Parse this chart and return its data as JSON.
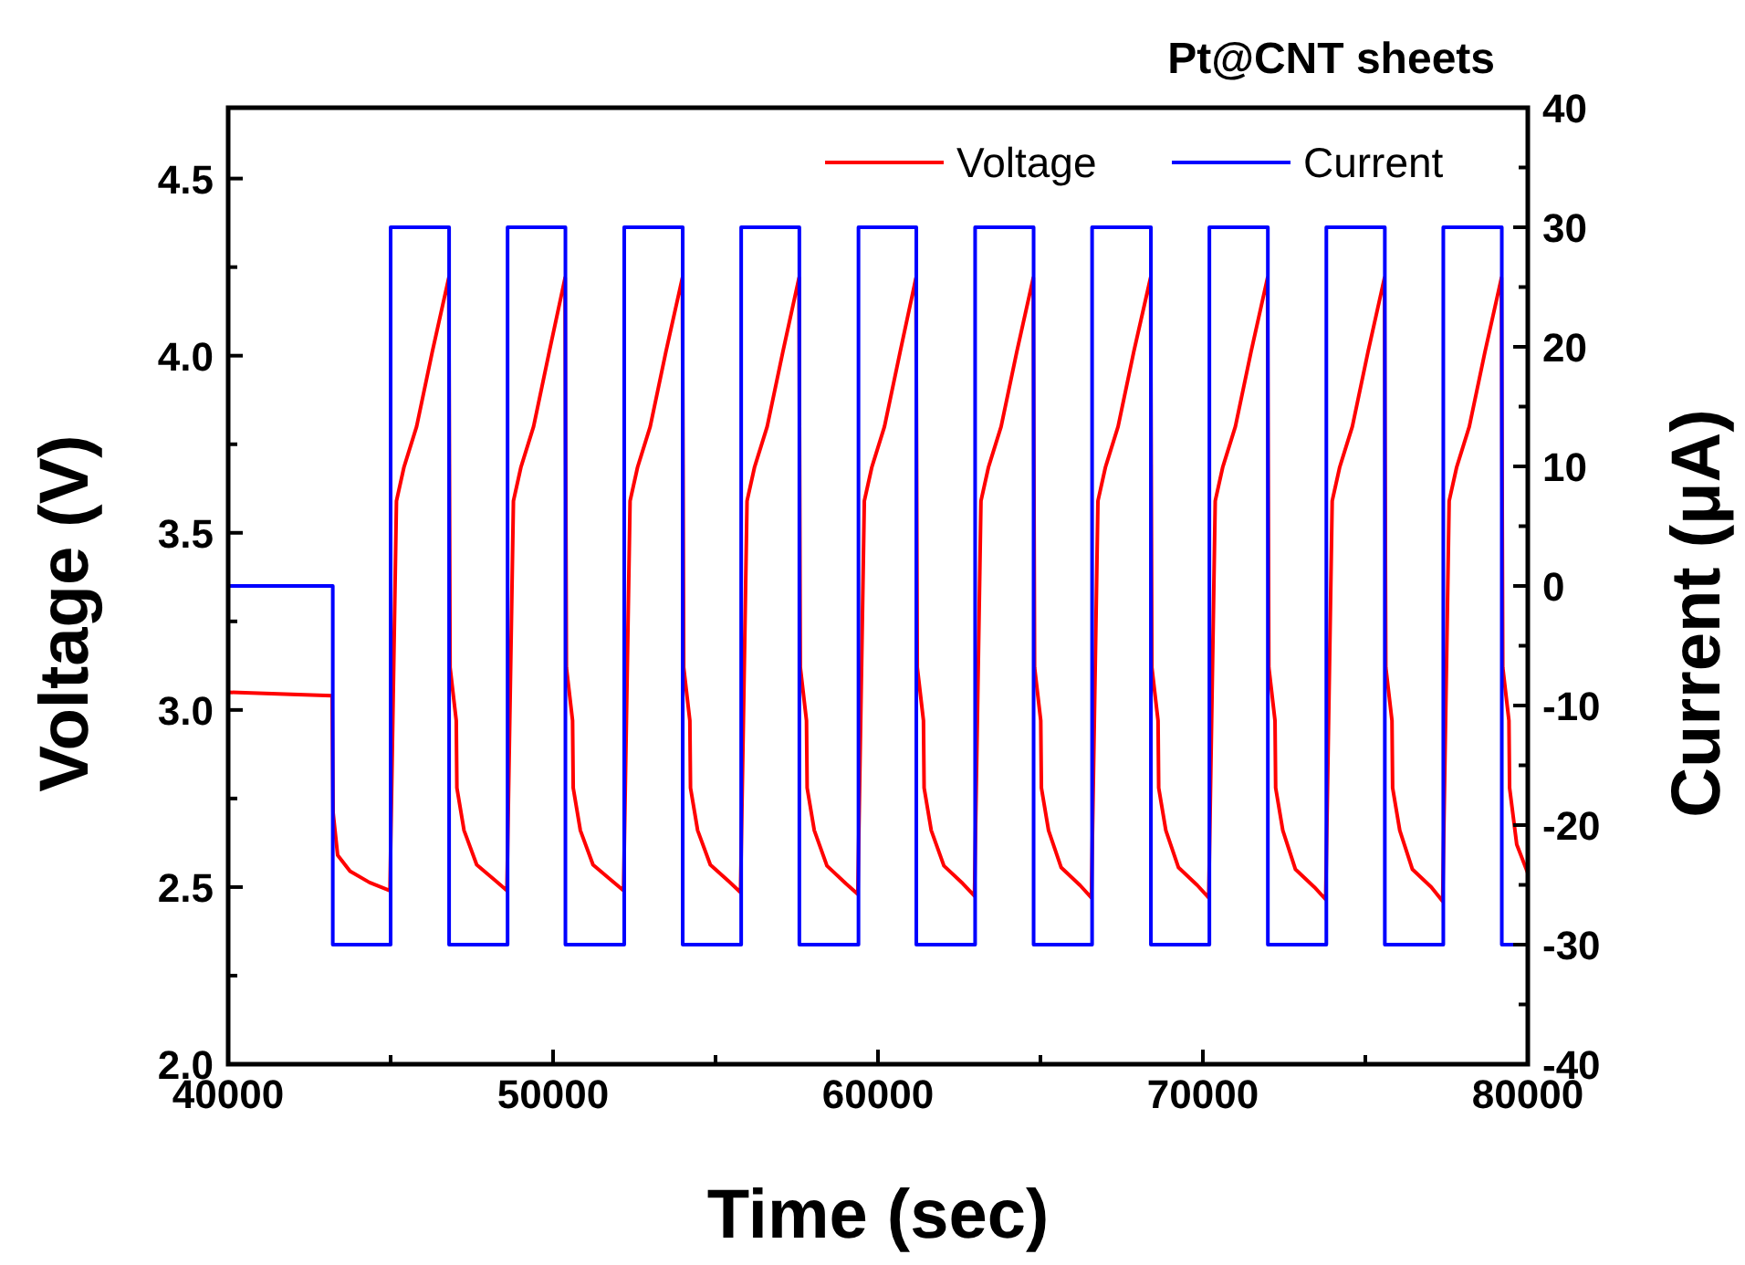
{
  "chart_data": {
    "type": "line",
    "title": "Pt@CNT sheets",
    "xlabel": "Time (sec)",
    "ylabel": "Voltage (V)",
    "y2label": "Current (μA)",
    "xlim": [
      40000,
      80000
    ],
    "xticks": [
      40000,
      {
        "value": 45000,
        "label": null
      },
      50000,
      {
        "value": 55000,
        "label": null
      },
      60000,
      {
        "value": 65000,
        "label": null
      },
      70000,
      {
        "value": 75000,
        "label": null
      },
      80000
    ],
    "ylim": [
      2.0,
      4.7
    ],
    "yticks": [
      {
        "value": 2,
        "label": "2.0"
      },
      {
        "value": 2.25,
        "label": null
      },
      {
        "value": 2.5,
        "label": "2.5"
      },
      {
        "value": 2.75,
        "label": null
      },
      {
        "value": 3,
        "label": "3.0"
      },
      {
        "value": 3.25,
        "label": null
      },
      {
        "value": 3.5,
        "label": "3.5"
      },
      {
        "value": 3.75,
        "label": null
      },
      {
        "value": 4,
        "label": "4.0"
      },
      {
        "value": 4.25,
        "label": null
      },
      {
        "value": 4.5,
        "label": "4.5"
      }
    ],
    "y2lim": [
      -40,
      40
    ],
    "y2ticks": [
      -40,
      {
        "value": -35,
        "label": null
      },
      -30,
      {
        "value": -25,
        "label": null
      },
      -20,
      {
        "value": -15,
        "label": null
      },
      -10,
      {
        "value": -5,
        "label": null
      },
      0,
      {
        "value": 5,
        "label": null
      },
      10,
      {
        "value": 15,
        "label": null
      },
      20,
      {
        "value": 25,
        "label": null
      },
      30,
      {
        "value": 35,
        "label": null
      },
      40
    ],
    "legend": "top right",
    "grid": false,
    "marker": "none",
    "line_style": "solid",
    "series": [
      {
        "name": "Voltage",
        "color": "#ff0000",
        "x": [
          40000,
          43200,
          43230,
          43370,
          43750,
          44350,
          44980,
          45180,
          45410,
          45800,
          46280,
          46790,
          46830,
          47020,
          47040,
          47260,
          47650,
          48230,
          48580,
          48780,
          49010,
          49400,
          49880,
          50370,
          50410,
          50600,
          50620,
          50840,
          51230,
          51810,
          52170,
          52370,
          52600,
          52990,
          53470,
          53980,
          54020,
          54210,
          54230,
          54450,
          54840,
          55420,
          55770,
          55970,
          56200,
          56590,
          57070,
          57570,
          57610,
          57800,
          57820,
          58040,
          58430,
          59010,
          59380,
          59580,
          59810,
          60200,
          60680,
          61170,
          61210,
          61400,
          61420,
          61640,
          62030,
          62610,
          62970,
          63170,
          63400,
          63790,
          64270,
          64780,
          64820,
          65010,
          65030,
          65250,
          65640,
          66220,
          66570,
          66770,
          67000,
          67390,
          67870,
          68390,
          68430,
          68620,
          68640,
          68860,
          69250,
          69830,
          70180,
          70380,
          70610,
          71000,
          71480,
          71990,
          72030,
          72220,
          72240,
          72460,
          72850,
          73430,
          73780,
          73980,
          74210,
          74600,
          75080,
          75590,
          75630,
          75820,
          75840,
          76060,
          76450,
          77030,
          77380,
          77580,
          77810,
          78200,
          78680,
          79190,
          79230,
          79420,
          79440,
          79660,
          80000
        ],
        "values": [
          3.05,
          3.04,
          2.71,
          2.59,
          2.545,
          2.513,
          2.49,
          3.59,
          3.685,
          3.8,
          4.01,
          4.22,
          3.12,
          2.97,
          2.78,
          2.66,
          2.563,
          2.518,
          2.49,
          3.59,
          3.685,
          3.8,
          4.01,
          4.22,
          3.12,
          2.97,
          2.78,
          2.66,
          2.563,
          2.518,
          2.49,
          3.59,
          3.685,
          3.8,
          4.01,
          4.22,
          3.12,
          2.97,
          2.78,
          2.66,
          2.563,
          2.515,
          2.485,
          3.59,
          3.685,
          3.8,
          4.01,
          4.22,
          3.12,
          2.97,
          2.78,
          2.66,
          2.56,
          2.51,
          2.48,
          3.59,
          3.685,
          3.8,
          4.01,
          4.22,
          3.12,
          2.97,
          2.78,
          2.66,
          2.56,
          2.51,
          2.475,
          3.59,
          3.685,
          3.8,
          4.01,
          4.22,
          3.12,
          2.97,
          2.78,
          2.66,
          2.555,
          2.505,
          2.47,
          3.59,
          3.685,
          3.8,
          4.01,
          4.22,
          3.12,
          2.97,
          2.78,
          2.66,
          2.555,
          2.505,
          2.47,
          3.59,
          3.685,
          3.8,
          4.01,
          4.22,
          3.12,
          2.97,
          2.78,
          2.66,
          2.55,
          2.5,
          2.465,
          3.59,
          3.685,
          3.8,
          4.01,
          4.22,
          3.12,
          2.97,
          2.78,
          2.66,
          2.55,
          2.5,
          2.46,
          3.59,
          3.685,
          3.8,
          4.01,
          4.22,
          3.12,
          2.97,
          2.78,
          2.62,
          2.54
        ]
      },
      {
        "name": "Current",
        "color": "#0000ff",
        "axis": "y2",
        "x": [
          40000,
          43220,
          43220,
          45000,
          45000,
          46800,
          46800,
          48600,
          48600,
          50380,
          50380,
          52190,
          52190,
          53990,
          53990,
          55790,
          55790,
          57580,
          57580,
          59400,
          59400,
          61180,
          61180,
          62990,
          62990,
          64790,
          64790,
          66590,
          66590,
          68400,
          68400,
          70200,
          70200,
          72000,
          72000,
          73800,
          73800,
          75600,
          75600,
          77400,
          77400,
          79200,
          79200,
          80000
        ],
        "values": [
          0,
          0,
          -30,
          -30,
          30,
          30,
          -30,
          -30,
          30,
          30,
          -30,
          -30,
          30,
          30,
          -30,
          -30,
          30,
          30,
          -30,
          -30,
          30,
          30,
          -30,
          -30,
          30,
          30,
          -30,
          -30,
          30,
          30,
          -30,
          -30,
          30,
          30,
          -30,
          -30,
          30,
          30,
          -30,
          -30,
          30,
          30,
          -30,
          -30
        ]
      }
    ]
  }
}
